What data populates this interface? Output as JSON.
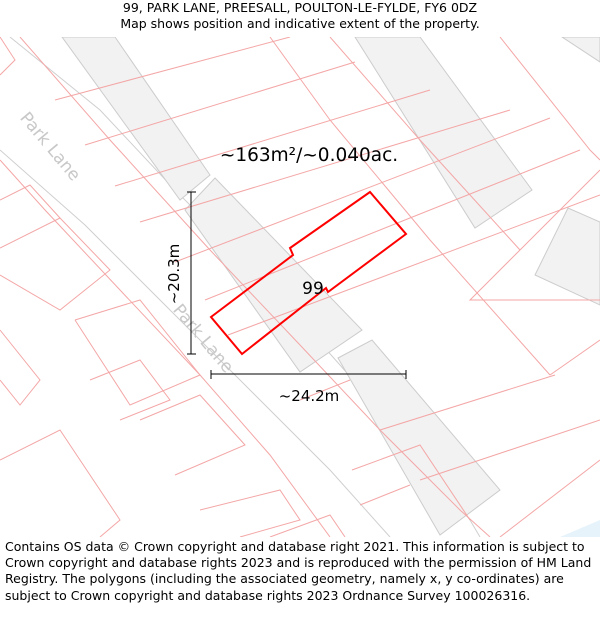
{
  "header": {
    "address": "99, PARK LANE, PREESALL, POULTON-LE-FYLDE, FY6 0DZ",
    "subtitle": "Map shows position and indicative extent of the property."
  },
  "map": {
    "area_label": "~163m²/~0.040ac.",
    "plot_label": "99",
    "height_label": "~20.3m",
    "width_label": "~24.2m",
    "street_label_1": "Park Lane",
    "street_label_2": "Park Lane",
    "colors": {
      "plot_outline": "#ff0000",
      "parcel_lines": "#f4a6a6",
      "buildings": "#f2f2f2",
      "water": "#e6f3fb"
    }
  },
  "footer": {
    "attribution": "Contains OS data © Crown copyright and database right 2021. This information is subject to Crown copyright and database rights 2023 and is reproduced with the permission of HM Land Registry. The polygons (including the associated geometry, namely x, y co-ordinates) are subject to Crown copyright and database rights 2023 Ordnance Survey 100026316."
  }
}
